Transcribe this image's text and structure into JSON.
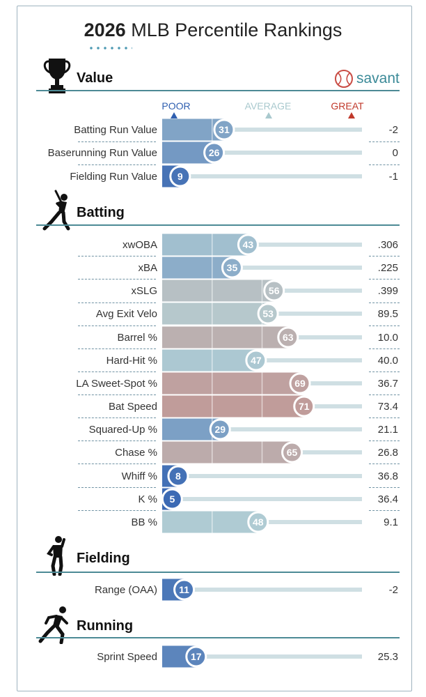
{
  "title_bold": "2026",
  "title_rest": " MLB Percentile Rankings",
  "brand": "savant",
  "scale": {
    "poor": "POOR",
    "average": "AVERAGE",
    "great": "GREAT"
  },
  "colors": {
    "poor": "#2f5fb0",
    "average": "#b4cfd4",
    "great": "#d0564b",
    "accent": "#4c8a95"
  },
  "icons": {
    "value": "trophy-icon",
    "batting": "batter-icon",
    "fielding": "fielder-icon",
    "running": "runner-icon",
    "brand": "baseball-icon"
  },
  "chart_data": {
    "type": "bar",
    "orientation": "horizontal",
    "title": "2026 MLB Percentile Rankings",
    "xlim": [
      0,
      100
    ],
    "sections": [
      {
        "name": "Value",
        "metrics": [
          {
            "label": "Batting Run Value",
            "percentile": 31,
            "value": "-2"
          },
          {
            "label": "Baserunning Run Value",
            "percentile": 26,
            "value": "0"
          },
          {
            "label": "Fielding Run Value",
            "percentile": 9,
            "value": "-1"
          }
        ]
      },
      {
        "name": "Batting",
        "metrics": [
          {
            "label": "xwOBA",
            "percentile": 43,
            "value": ".306"
          },
          {
            "label": "xBA",
            "percentile": 35,
            "value": ".225"
          },
          {
            "label": "xSLG",
            "percentile": 56,
            "value": ".399"
          },
          {
            "label": "Avg Exit Velo",
            "percentile": 53,
            "value": "89.5"
          },
          {
            "label": "Barrel %",
            "percentile": 63,
            "value": "10.0"
          },
          {
            "label": "Hard-Hit %",
            "percentile": 47,
            "value": "40.0"
          },
          {
            "label": "LA Sweet-Spot %",
            "percentile": 69,
            "value": "36.7"
          },
          {
            "label": "Bat Speed",
            "percentile": 71,
            "value": "73.4"
          },
          {
            "label": "Squared-Up %",
            "percentile": 29,
            "value": "21.1"
          },
          {
            "label": "Chase %",
            "percentile": 65,
            "value": "26.8"
          },
          {
            "label": "Whiff %",
            "percentile": 8,
            "value": "36.8"
          },
          {
            "label": "K %",
            "percentile": 5,
            "value": "36.4"
          },
          {
            "label": "BB %",
            "percentile": 48,
            "value": "9.1"
          }
        ]
      },
      {
        "name": "Fielding",
        "metrics": [
          {
            "label": "Range (OAA)",
            "percentile": 11,
            "value": "-2"
          }
        ]
      },
      {
        "name": "Running",
        "metrics": [
          {
            "label": "Sprint Speed",
            "percentile": 17,
            "value": "25.3"
          }
        ]
      }
    ]
  }
}
